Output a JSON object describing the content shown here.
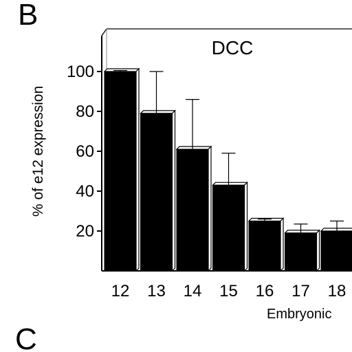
{
  "figure": {
    "panel_top": "B",
    "panel_bottom": "C"
  },
  "chart_data": {
    "type": "bar",
    "title": "DCC",
    "ylabel": "% of e12 expression",
    "xlabel": "Embryonic",
    "categories": [
      "12",
      "13",
      "14",
      "15",
      "16",
      "17",
      "18"
    ],
    "values": [
      100,
      79,
      61,
      43,
      25,
      19,
      20
    ],
    "error_upper": [
      100.5,
      100,
      86,
      59,
      26,
      23.5,
      25
    ],
    "ylim": [
      0,
      120
    ],
    "yticks": [
      20,
      40,
      60,
      80,
      100
    ],
    "grid": false,
    "bar_color": "#000000"
  }
}
